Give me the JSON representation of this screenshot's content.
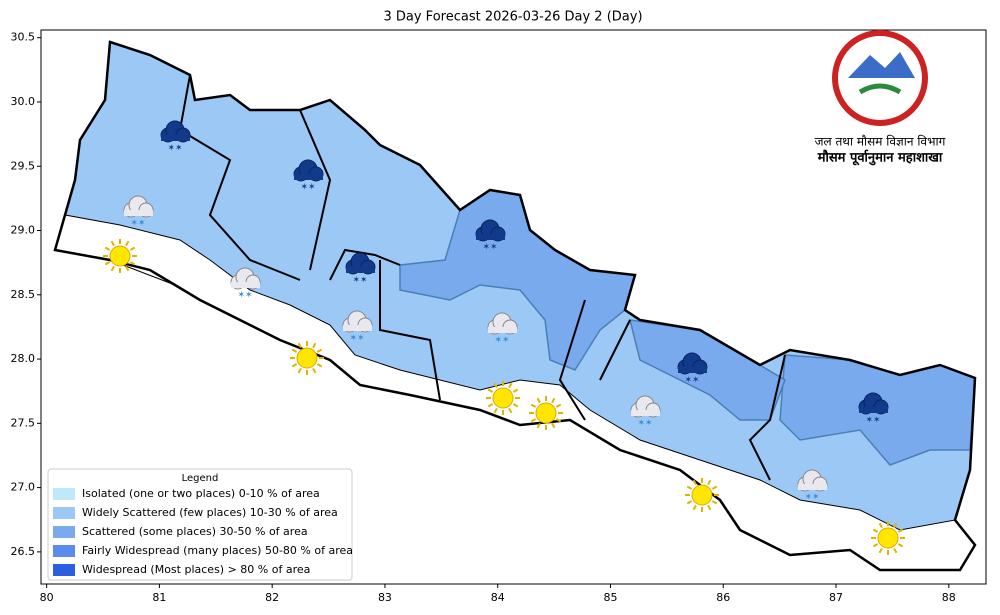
{
  "title": "3 Day Forecast 2026-03-26 Day 2 (Day)",
  "xlim": [
    79.95,
    88.33
  ],
  "ylim": [
    26.25,
    30.56
  ],
  "xticks": [
    80,
    81,
    82,
    83,
    84,
    85,
    86,
    87,
    88
  ],
  "yticks": [
    {
      "value": 26.5,
      "label": "26.5"
    },
    {
      "value": 27,
      "label": "27.0"
    },
    {
      "value": 27.5,
      "label": "27.5"
    },
    {
      "value": 28,
      "label": "28.0"
    },
    {
      "value": 28.5,
      "label": "28.5"
    },
    {
      "value": 29,
      "label": "29.0"
    },
    {
      "value": 29.5,
      "label": "29.5"
    },
    {
      "value": 30,
      "label": "30.0"
    },
    {
      "value": 30.5,
      "label": "30.5"
    }
  ],
  "legend": {
    "title": "Legend",
    "items": [
      {
        "label": "Isolated (one or two places)  0-10 % of area",
        "color": "#bfe9fb"
      },
      {
        "label": "Widely Scattered (few places)  10-30 % of area",
        "color": "#9cc8f5"
      },
      {
        "label": "Scattered (some places)  30-50 % of area",
        "color": "#7aaaee"
      },
      {
        "label": "Fairly Widespread (many places)  50-80 % of area",
        "color": "#5a8cf0"
      },
      {
        "label": "Widespread (Most places) > 80 % of area",
        "color": "#2c5fe0"
      }
    ]
  },
  "logo": {
    "department": "जल तथा मौसम विज्ञान विभाग",
    "division": "मौसम पूर्वानुमान महाशाखा"
  }
}
